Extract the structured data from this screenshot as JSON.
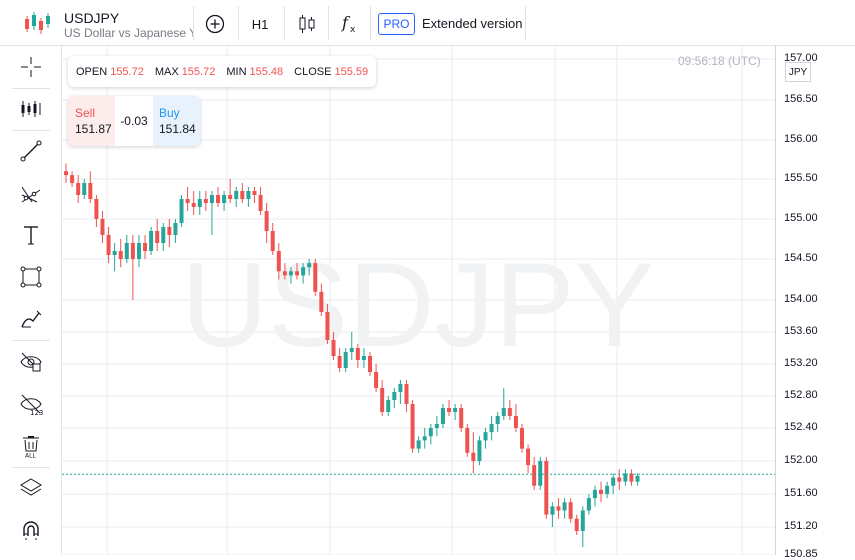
{
  "header": {
    "symbol": "USDJPY",
    "description": "US Dollar vs Japanese Yen",
    "timeframe": "H1",
    "pro_badge": "PRO",
    "extended_label": "Extended version",
    "icons": [
      "candles-logo-icon",
      "add-circle-icon",
      "candle-type-icon",
      "indicators-fx-icon"
    ]
  },
  "sidebar": {
    "tools": [
      "crosshair-icon",
      "multiline-tool-icon",
      "trend-line-icon",
      "fork-tool-icon",
      "text-tool-icon",
      "rectangle-tool-icon",
      "brush-tool-icon",
      "hide-drawings-icon",
      "hide-values-icon",
      "delete-all-icon",
      "layers-icon",
      "magnet-icon"
    ]
  },
  "chart": {
    "watermark": "USDJPY",
    "clock": "09:56:18 (UTC)",
    "currency": "JPY",
    "ohlc": {
      "open_label": "OPEN",
      "open": "155.72",
      "max_label": "MAX",
      "max": "155.72",
      "min_label": "MIN",
      "min": "155.48",
      "close_label": "CLOSE",
      "close": "155.59"
    },
    "trade": {
      "sell_label": "Sell",
      "sell": "151.87",
      "spread": "-0.03",
      "buy_label": "Buy",
      "buy": "151.84"
    },
    "colors": {
      "up": "#26a69a",
      "down": "#ef5350",
      "grid": "#e9ebf0",
      "current_line": "#26a69a"
    }
  },
  "price_axis": {
    "ticks": [
      "157.00",
      "156.50",
      "156.00",
      "155.50",
      "155.00",
      "154.50",
      "154.00",
      "153.60",
      "153.20",
      "152.80",
      "152.40",
      "152.00",
      "151.60",
      "151.20",
      "150.85"
    ]
  },
  "chart_data": {
    "type": "candlestick",
    "symbol": "USDJPY",
    "ylim": [
      150.85,
      157.0
    ],
    "current_price": 151.84,
    "ohlc": [
      [
        155.6,
        155.7,
        155.45,
        155.55
      ],
      [
        155.55,
        155.6,
        155.4,
        155.45
      ],
      [
        155.45,
        155.55,
        155.2,
        155.3
      ],
      [
        155.3,
        155.5,
        155.25,
        155.45
      ],
      [
        155.45,
        155.6,
        155.2,
        155.25
      ],
      [
        155.25,
        155.3,
        154.9,
        155.0
      ],
      [
        155.0,
        155.1,
        154.7,
        154.8
      ],
      [
        154.8,
        154.9,
        154.45,
        154.55
      ],
      [
        154.55,
        154.7,
        154.35,
        154.6
      ],
      [
        154.6,
        154.75,
        154.4,
        154.5
      ],
      [
        154.5,
        154.8,
        154.45,
        154.7
      ],
      [
        154.7,
        154.8,
        154.0,
        154.5
      ],
      [
        154.5,
        154.8,
        154.4,
        154.7
      ],
      [
        154.7,
        154.8,
        154.5,
        154.6
      ],
      [
        154.6,
        154.9,
        154.55,
        154.85
      ],
      [
        154.85,
        155.0,
        154.6,
        154.7
      ],
      [
        154.7,
        154.95,
        154.6,
        154.9
      ],
      [
        154.9,
        155.0,
        154.65,
        154.8
      ],
      [
        154.8,
        155.0,
        154.7,
        154.95
      ],
      [
        154.95,
        155.3,
        154.9,
        155.25
      ],
      [
        155.25,
        155.4,
        155.1,
        155.2
      ],
      [
        155.2,
        155.35,
        155.05,
        155.15
      ],
      [
        155.15,
        155.35,
        155.05,
        155.25
      ],
      [
        155.25,
        155.35,
        155.1,
        155.2
      ],
      [
        155.2,
        155.35,
        154.8,
        155.3
      ],
      [
        155.3,
        155.4,
        155.15,
        155.2
      ],
      [
        155.2,
        155.35,
        155.1,
        155.3
      ],
      [
        155.3,
        155.5,
        155.2,
        155.25
      ],
      [
        155.25,
        155.4,
        155.15,
        155.35
      ],
      [
        155.35,
        155.45,
        155.2,
        155.25
      ],
      [
        155.25,
        155.4,
        155.15,
        155.35
      ],
      [
        155.35,
        155.4,
        155.2,
        155.3
      ],
      [
        155.3,
        155.4,
        155.05,
        155.1
      ],
      [
        155.1,
        155.2,
        154.7,
        154.85
      ],
      [
        154.85,
        154.95,
        154.55,
        154.6
      ],
      [
        154.6,
        154.7,
        154.25,
        154.35
      ],
      [
        154.35,
        154.45,
        154.25,
        154.3
      ],
      [
        154.3,
        154.4,
        154.2,
        154.35
      ],
      [
        154.35,
        154.45,
        154.25,
        154.3
      ],
      [
        154.3,
        154.45,
        154.2,
        154.4
      ],
      [
        154.4,
        154.5,
        154.3,
        154.45
      ],
      [
        154.45,
        154.5,
        154.05,
        154.1
      ],
      [
        154.1,
        154.2,
        153.8,
        153.85
      ],
      [
        153.85,
        153.95,
        153.45,
        153.5
      ],
      [
        153.5,
        153.6,
        153.25,
        153.3
      ],
      [
        153.3,
        153.4,
        153.1,
        153.15
      ],
      [
        153.15,
        153.4,
        153.1,
        153.35
      ],
      [
        153.35,
        153.6,
        153.25,
        153.4
      ],
      [
        153.4,
        153.45,
        153.15,
        153.25
      ],
      [
        153.25,
        153.4,
        153.15,
        153.3
      ],
      [
        153.3,
        153.35,
        153.05,
        153.1
      ],
      [
        153.1,
        153.2,
        152.85,
        152.9
      ],
      [
        152.9,
        153.0,
        152.55,
        152.6
      ],
      [
        152.6,
        152.8,
        152.55,
        152.75
      ],
      [
        152.75,
        152.9,
        152.65,
        152.85
      ],
      [
        152.85,
        153.0,
        152.7,
        152.95
      ],
      [
        152.95,
        153.0,
        152.6,
        152.7
      ],
      [
        152.7,
        152.75,
        152.1,
        152.15
      ],
      [
        152.15,
        152.3,
        152.1,
        152.25
      ],
      [
        152.25,
        152.4,
        152.15,
        152.3
      ],
      [
        152.3,
        152.45,
        152.2,
        152.4
      ],
      [
        152.4,
        152.55,
        152.3,
        152.45
      ],
      [
        152.45,
        152.7,
        152.4,
        152.65
      ],
      [
        152.65,
        152.75,
        152.55,
        152.6
      ],
      [
        152.6,
        152.7,
        152.5,
        152.65
      ],
      [
        152.65,
        152.7,
        152.35,
        152.4
      ],
      [
        152.4,
        152.45,
        152.05,
        152.1
      ],
      [
        152.1,
        152.35,
        151.85,
        152.0
      ],
      [
        152.0,
        152.3,
        151.95,
        152.25
      ],
      [
        152.25,
        152.4,
        152.15,
        152.35
      ],
      [
        152.35,
        152.55,
        152.25,
        152.45
      ],
      [
        152.45,
        152.6,
        152.35,
        152.55
      ],
      [
        152.55,
        152.9,
        152.5,
        152.65
      ],
      [
        152.65,
        152.75,
        152.5,
        152.55
      ],
      [
        152.55,
        152.7,
        152.35,
        152.4
      ],
      [
        152.4,
        152.45,
        152.1,
        152.15
      ],
      [
        152.15,
        152.2,
        151.85,
        151.95
      ],
      [
        151.95,
        152.05,
        151.65,
        151.7
      ],
      [
        151.7,
        152.05,
        151.65,
        152.0
      ],
      [
        152.0,
        152.05,
        151.3,
        151.35
      ],
      [
        151.35,
        151.5,
        151.2,
        151.45
      ],
      [
        151.45,
        151.55,
        151.3,
        151.4
      ],
      [
        151.4,
        151.55,
        151.3,
        151.5
      ],
      [
        151.5,
        151.55,
        151.25,
        151.3
      ],
      [
        151.3,
        151.35,
        151.1,
        151.15
      ],
      [
        151.15,
        151.45,
        150.95,
        151.4
      ],
      [
        151.4,
        151.6,
        151.35,
        151.55
      ],
      [
        151.55,
        151.7,
        151.45,
        151.65
      ],
      [
        151.65,
        151.75,
        151.5,
        151.6
      ],
      [
        151.6,
        151.75,
        151.55,
        151.7
      ],
      [
        151.7,
        151.85,
        151.6,
        151.8
      ],
      [
        151.8,
        151.9,
        151.65,
        151.75
      ],
      [
        151.75,
        151.9,
        151.7,
        151.85
      ],
      [
        151.85,
        151.9,
        151.7,
        151.75
      ],
      [
        151.75,
        151.85,
        151.7,
        151.82
      ]
    ]
  }
}
